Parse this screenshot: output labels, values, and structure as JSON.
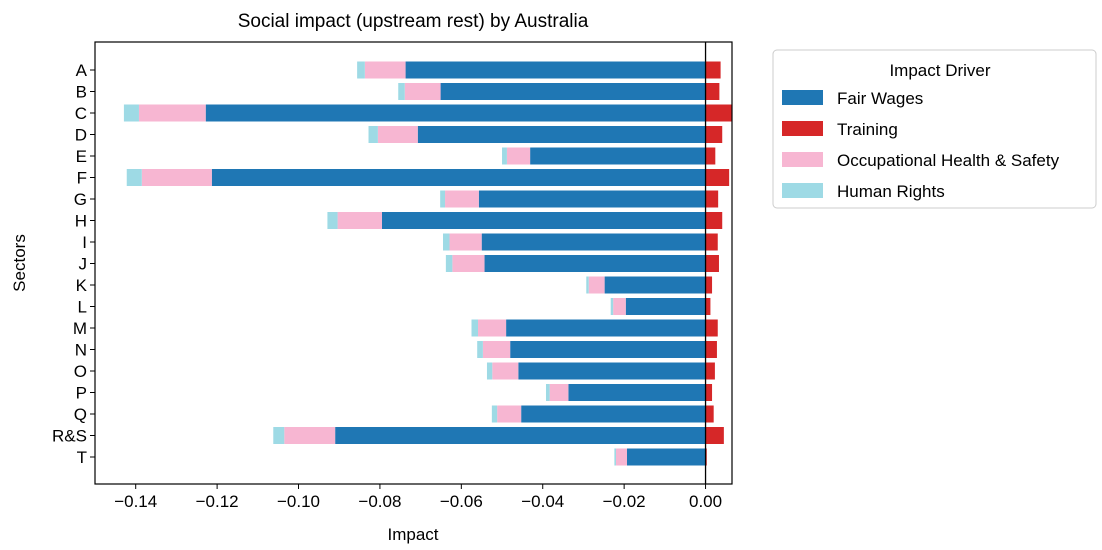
{
  "chart_data": {
    "type": "bar",
    "orientation": "horizontal",
    "stacked": true,
    "title": "Social impact (upstream rest) by Australia",
    "xlabel": "Impact",
    "ylabel": "Sectors",
    "xlim": [
      -0.15,
      0.0065
    ],
    "x_ticks": [
      -0.14,
      -0.12,
      -0.1,
      -0.08,
      -0.06,
      -0.04,
      -0.02,
      0.0
    ],
    "x_tick_labels": [
      "−0.14",
      "−0.12",
      "−0.10",
      "−0.08",
      "−0.06",
      "−0.04",
      "−0.02",
      "0.00"
    ],
    "categories": [
      "A",
      "B",
      "C",
      "D",
      "E",
      "F",
      "G",
      "H",
      "I",
      "J",
      "K",
      "L",
      "M",
      "N",
      "O",
      "P",
      "Q",
      "R&S",
      "T"
    ],
    "legend": {
      "title": "Impact Driver",
      "placement": "outside-right-top"
    },
    "zero_line": true,
    "grid": false,
    "series": [
      {
        "name": "Fair Wages",
        "color": "#1f77b4",
        "values": [
          -0.0737,
          -0.0651,
          -0.1228,
          -0.0707,
          -0.0431,
          -0.1213,
          -0.0557,
          -0.0795,
          -0.055,
          -0.0543,
          -0.0248,
          -0.0196,
          -0.049,
          -0.048,
          -0.046,
          -0.0337,
          -0.0453,
          -0.091,
          -0.0193
        ]
      },
      {
        "name": "Training",
        "color": "#d62728",
        "values": [
          0.0037,
          0.0034,
          0.0065,
          0.0041,
          0.0024,
          0.0058,
          0.0031,
          0.0041,
          0.003,
          0.0033,
          0.0016,
          0.0012,
          0.003,
          0.0028,
          0.0023,
          0.0016,
          0.002,
          0.0045,
          0.0003
        ]
      },
      {
        "name": "Occupational Health & Safety",
        "color": "#f7b6d2",
        "values": [
          -0.01,
          -0.0088,
          -0.0164,
          -0.0098,
          -0.0057,
          -0.0172,
          -0.0083,
          -0.0109,
          -0.0079,
          -0.0079,
          -0.0039,
          -0.0031,
          -0.0069,
          -0.0067,
          -0.0064,
          -0.0046,
          -0.0059,
          -0.0125,
          -0.0027
        ]
      },
      {
        "name": "Human Rights",
        "color": "#9edae5",
        "values": [
          -0.0019,
          -0.0016,
          -0.0037,
          -0.0023,
          -0.0012,
          -0.0037,
          -0.0012,
          -0.0025,
          -0.0016,
          -0.0016,
          -0.0006,
          -0.0006,
          -0.0016,
          -0.0014,
          -0.0013,
          -0.0009,
          -0.0013,
          -0.0027,
          -0.0004
        ]
      }
    ]
  }
}
